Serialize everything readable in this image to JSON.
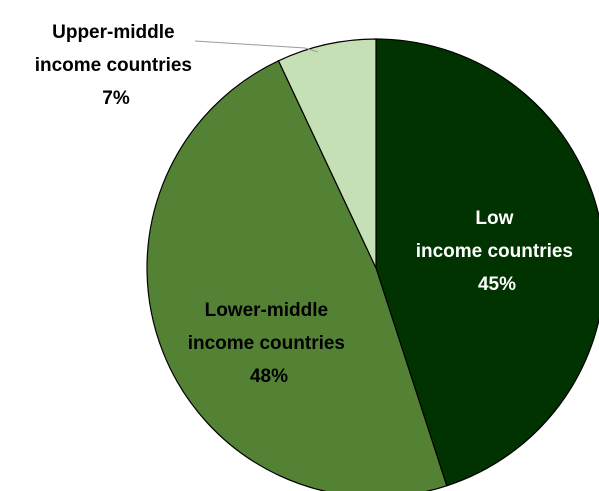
{
  "chart_data": {
    "type": "pie",
    "title": "",
    "slices": [
      {
        "label_line1": "Low",
        "label_line2": "income countries",
        "value_label": "45%",
        "value": 45,
        "color": "#003300",
        "text_color": "#ffffff"
      },
      {
        "label_line1": "Lower-middle",
        "label_line2": "income countries",
        "value_label": "48%",
        "value": 48,
        "color": "#548235",
        "text_color": "#000000"
      },
      {
        "label_line1": "Upper-middle",
        "label_line2": "income countries",
        "value_label": "7%",
        "value": 7,
        "color": "#c5e0b4",
        "text_color": "#000000"
      }
    ],
    "start": "12 o'clock",
    "direction": "clockwise",
    "legend": "none"
  }
}
